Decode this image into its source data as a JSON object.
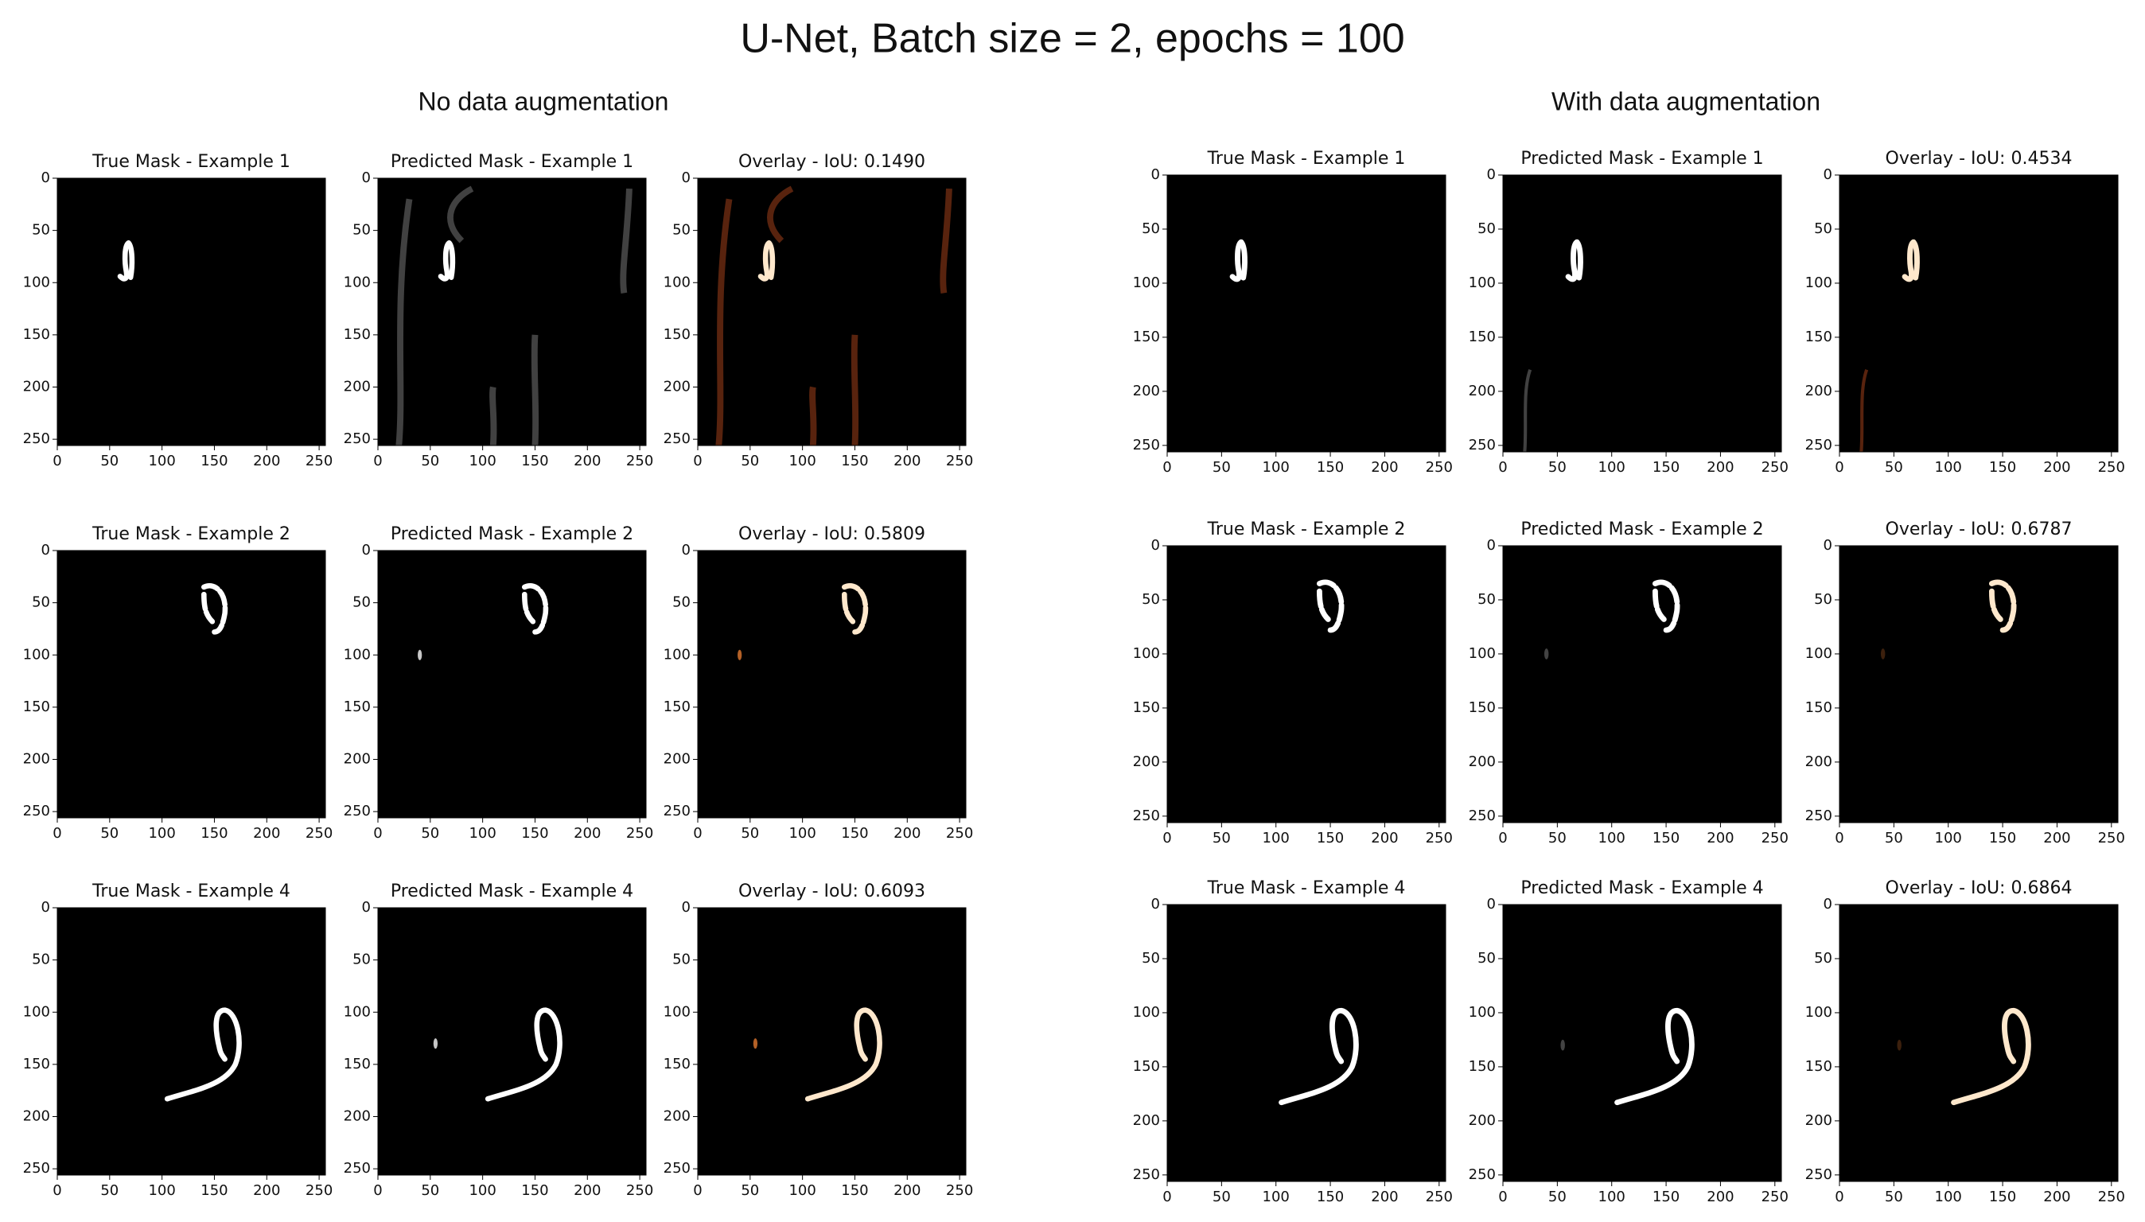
{
  "title": "U-Net, Batch size = 2, epochs = 100",
  "sections": [
    {
      "heading": "No data augmentation"
    },
    {
      "heading": "With data augmentation"
    }
  ],
  "chart_data": [
    {
      "type": "image",
      "title": "True Mask - Example 1",
      "xlim": [
        0,
        256
      ],
      "ylim": [
        256,
        0
      ],
      "xticks": [
        0,
        50,
        100,
        150,
        200,
        250
      ],
      "yticks": [
        0,
        50,
        100,
        150,
        200,
        250
      ]
    },
    {
      "type": "image",
      "title": "Predicted Mask - Example 1",
      "xlim": [
        0,
        256
      ],
      "ylim": [
        256,
        0
      ],
      "xticks": [
        0,
        50,
        100,
        150,
        200,
        250
      ],
      "yticks": [
        0,
        50,
        100,
        150,
        200,
        250
      ]
    },
    {
      "type": "image",
      "title": "Overlay - IoU: 0.1490",
      "xlim": [
        0,
        256
      ],
      "ylim": [
        256,
        0
      ],
      "xticks": [
        0,
        50,
        100,
        150,
        200,
        250
      ],
      "yticks": [
        0,
        50,
        100,
        150,
        200,
        250
      ]
    },
    {
      "type": "image",
      "title": "True Mask - Example 2",
      "xlim": [
        0,
        256
      ],
      "ylim": [
        256,
        0
      ],
      "xticks": [
        0,
        50,
        100,
        150,
        200,
        250
      ],
      "yticks": [
        0,
        50,
        100,
        150,
        200,
        250
      ]
    },
    {
      "type": "image",
      "title": "Predicted Mask - Example 2",
      "xlim": [
        0,
        256
      ],
      "ylim": [
        256,
        0
      ],
      "xticks": [
        0,
        50,
        100,
        150,
        200,
        250
      ],
      "yticks": [
        0,
        50,
        100,
        150,
        200,
        250
      ]
    },
    {
      "type": "image",
      "title": "Overlay - IoU: 0.5809",
      "xlim": [
        0,
        256
      ],
      "ylim": [
        256,
        0
      ],
      "xticks": [
        0,
        50,
        100,
        150,
        200,
        250
      ],
      "yticks": [
        0,
        50,
        100,
        150,
        200,
        250
      ]
    },
    {
      "type": "image",
      "title": "True Mask - Example 4",
      "xlim": [
        0,
        256
      ],
      "ylim": [
        256,
        0
      ],
      "xticks": [
        0,
        50,
        100,
        150,
        200,
        250
      ],
      "yticks": [
        0,
        50,
        100,
        150,
        200,
        250
      ]
    },
    {
      "type": "image",
      "title": "Predicted Mask - Example 4",
      "xlim": [
        0,
        256
      ],
      "ylim": [
        256,
        0
      ],
      "xticks": [
        0,
        50,
        100,
        150,
        200,
        250
      ],
      "yticks": [
        0,
        50,
        100,
        150,
        200,
        250
      ]
    },
    {
      "type": "image",
      "title": "Overlay - IoU: 0.6093",
      "xlim": [
        0,
        256
      ],
      "ylim": [
        256,
        0
      ],
      "xticks": [
        0,
        50,
        100,
        150,
        200,
        250
      ],
      "yticks": [
        0,
        50,
        100,
        150,
        200,
        250
      ]
    },
    {
      "type": "image",
      "title": "True Mask - Example 1",
      "xlim": [
        0,
        256
      ],
      "ylim": [
        256,
        0
      ],
      "xticks": [
        0,
        50,
        100,
        150,
        200,
        250
      ],
      "yticks": [
        0,
        50,
        100,
        150,
        200,
        250
      ]
    },
    {
      "type": "image",
      "title": "Predicted Mask - Example 1",
      "xlim": [
        0,
        256
      ],
      "ylim": [
        256,
        0
      ],
      "xticks": [
        0,
        50,
        100,
        150,
        200,
        250
      ],
      "yticks": [
        0,
        50,
        100,
        150,
        200,
        250
      ]
    },
    {
      "type": "image",
      "title": "Overlay - IoU: 0.4534",
      "xlim": [
        0,
        256
      ],
      "ylim": [
        256,
        0
      ],
      "xticks": [
        0,
        50,
        100,
        150,
        200,
        250
      ],
      "yticks": [
        0,
        50,
        100,
        150,
        200,
        250
      ]
    },
    {
      "type": "image",
      "title": "True Mask - Example 2",
      "xlim": [
        0,
        256
      ],
      "ylim": [
        256,
        0
      ],
      "xticks": [
        0,
        50,
        100,
        150,
        200,
        250
      ],
      "yticks": [
        0,
        50,
        100,
        150,
        200,
        250
      ]
    },
    {
      "type": "image",
      "title": "Predicted Mask - Example 2",
      "xlim": [
        0,
        256
      ],
      "ylim": [
        256,
        0
      ],
      "xticks": [
        0,
        50,
        100,
        150,
        200,
        250
      ],
      "yticks": [
        0,
        50,
        100,
        150,
        200,
        250
      ]
    },
    {
      "type": "image",
      "title": "Overlay - IoU: 0.6787",
      "xlim": [
        0,
        256
      ],
      "ylim": [
        256,
        0
      ],
      "xticks": [
        0,
        50,
        100,
        150,
        200,
        250
      ],
      "yticks": [
        0,
        50,
        100,
        150,
        200,
        250
      ]
    },
    {
      "type": "image",
      "title": "True Mask - Example 4",
      "xlim": [
        0,
        256
      ],
      "ylim": [
        256,
        0
      ],
      "xticks": [
        0,
        50,
        100,
        150,
        200,
        250
      ],
      "yticks": [
        0,
        50,
        100,
        150,
        200,
        250
      ]
    },
    {
      "type": "image",
      "title": "Predicted Mask - Example 4",
      "xlim": [
        0,
        256
      ],
      "ylim": [
        256,
        0
      ],
      "xticks": [
        0,
        50,
        100,
        150,
        200,
        250
      ],
      "yticks": [
        0,
        50,
        100,
        150,
        200,
        250
      ]
    },
    {
      "type": "image",
      "title": "Overlay - IoU: 0.6864",
      "xlim": [
        0,
        256
      ],
      "ylim": [
        256,
        0
      ],
      "xticks": [
        0,
        50,
        100,
        150,
        200,
        250
      ],
      "yticks": [
        0,
        50,
        100,
        150,
        200,
        250
      ]
    }
  ]
}
